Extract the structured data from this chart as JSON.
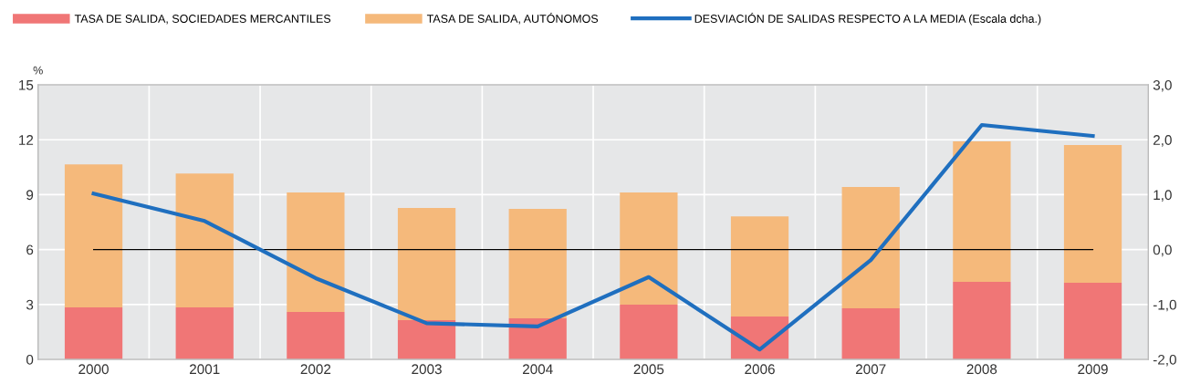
{
  "chart_data": {
    "type": "bar",
    "stacked": true,
    "ylabel": "%",
    "categories": [
      "2000",
      "2001",
      "2002",
      "2003",
      "2004",
      "2005",
      "2006",
      "2007",
      "2008",
      "2009"
    ],
    "series": [
      {
        "name": "TASA DE SALIDA, SOCIEDADES MERCANTILES",
        "color": "#f07676",
        "values": [
          2.84,
          2.84,
          2.59,
          2.14,
          2.24,
          2.99,
          2.34,
          2.79,
          4.24,
          4.19
        ]
      },
      {
        "name": "TASA DE SALIDA, AUTÓNOMOS",
        "color": "#f5b97b",
        "values": [
          7.82,
          7.32,
          6.53,
          6.13,
          5.98,
          6.13,
          5.48,
          6.63,
          7.67,
          7.52
        ]
      },
      {
        "name": "DESVIACIÓN DE SALIDAS RESPECTO A LA MEDIA (Escala dcha.)",
        "type": "line",
        "axis": "y2",
        "color": "#1f6fbf",
        "values": [
          1.02,
          0.52,
          -0.52,
          -1.34,
          -1.4,
          -0.5,
          -1.82,
          -0.19,
          2.27,
          2.07
        ]
      }
    ],
    "ylim": [
      0,
      15
    ],
    "yticks": [
      0,
      3,
      6,
      9,
      12,
      15
    ],
    "y2lim": [
      -2,
      3
    ],
    "y2ticks": [
      {
        "value": -2,
        "label": "-2,0"
      },
      {
        "value": -1,
        "label": "-1,0"
      },
      {
        "value": 0,
        "label": "0,0"
      },
      {
        "value": 1,
        "label": "1,0"
      },
      {
        "value": 2,
        "label": "2,0"
      },
      {
        "value": 3,
        "label": "3,0"
      }
    ],
    "ref_lines": [
      {
        "axis": "y2",
        "value": 0,
        "color": "#000000"
      }
    ],
    "grid": true,
    "legend": "top",
    "marker": "none",
    "line_style": "solid"
  }
}
